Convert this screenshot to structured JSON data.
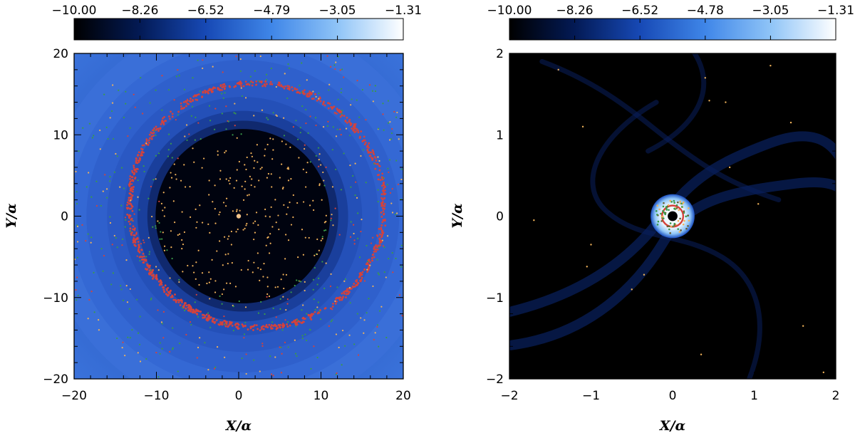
{
  "chart_data": [
    {
      "type": "heatmap",
      "xlabel": "X/α",
      "ylabel": "Y/α",
      "xlim": [
        -20,
        20
      ],
      "ylim": [
        -20,
        20
      ],
      "xticks": [
        "−20",
        "−10",
        "0",
        "10",
        "20"
      ],
      "yticks": [
        "−20",
        "−10",
        "0",
        "10",
        "20"
      ],
      "colorbar": {
        "range": [
          -10.0,
          -1.31
        ],
        "ticks": [
          "−10.00",
          "−8.26",
          "−6.52",
          "−4.79",
          "−3.05",
          "−1.31"
        ],
        "colors": [
          "#000000",
          "#031a55",
          "#1749b5",
          "#3f86e8",
          "#8fc4f7",
          "#ffffff"
        ]
      },
      "features": {
        "background_color": "#2c5bcb",
        "cavity": {
          "center": [
            0.5,
            0
          ],
          "radius": 10.6,
          "color": "#000010"
        },
        "particle_colors": {
          "ring": "#d6423a",
          "scattered": "#3a9a4a",
          "inner": "#f0b25a"
        },
        "spiral_ring": {
          "center": [
            0.5,
            0
          ],
          "radius_range": [
            13.2,
            17.6
          ]
        }
      }
    },
    {
      "type": "heatmap",
      "xlabel": "X/α",
      "ylabel": "Y/α",
      "xlim": [
        -2,
        2
      ],
      "ylim": [
        -2,
        2
      ],
      "xticks": [
        "−2",
        "−1",
        "0",
        "1",
        "2"
      ],
      "yticks": [
        "−2",
        "−1",
        "0",
        "1",
        "2"
      ],
      "colorbar": {
        "range": [
          -10.0,
          -1.31
        ],
        "ticks": [
          "−10.00",
          "−8.26",
          "−6.52",
          "−4.78",
          "−3.05",
          "−1.31"
        ],
        "colors": [
          "#000000",
          "#031a55",
          "#1749b5",
          "#3f86e8",
          "#8fc4f7",
          "#ffffff"
        ]
      },
      "features": {
        "background_color": "#000000",
        "disk": {
          "center": [
            0,
            0
          ],
          "radius": 0.27
        },
        "particle_colors": {
          "ring": "#d6423a",
          "scattered": "#3a9a4a",
          "inner": "#f0b25a"
        }
      }
    }
  ]
}
